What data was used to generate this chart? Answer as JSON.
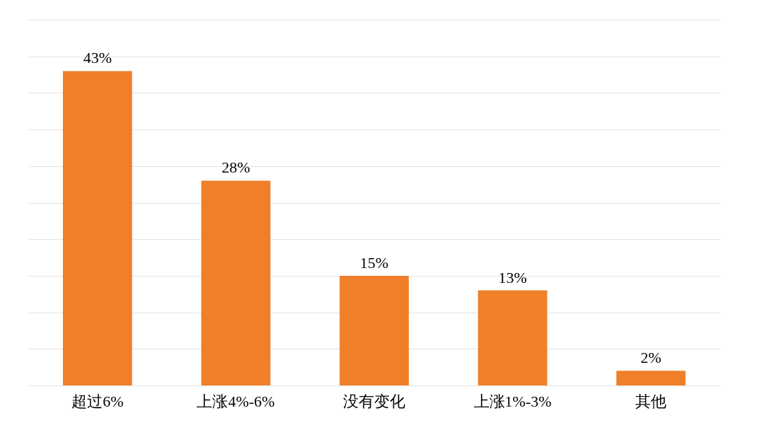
{
  "chart_data": {
    "type": "bar",
    "categories": [
      "超过6%",
      "上涨4%-6%",
      "没有变化",
      "上涨1%-3%",
      "其他"
    ],
    "values": [
      43,
      28,
      15,
      13,
      2
    ],
    "value_labels": [
      "43%",
      "28%",
      "15%",
      "13%",
      "2%"
    ],
    "color": "#f07f2a",
    "ylim": [
      0,
      50
    ],
    "yticks": [
      {
        "value": 0,
        "label": null
      },
      {
        "value": 5,
        "label": null
      },
      {
        "value": 10,
        "label": null
      },
      {
        "value": 15,
        "label": null
      },
      {
        "value": 20,
        "label": null
      },
      {
        "value": 25,
        "label": null
      },
      {
        "value": 30,
        "label": null
      },
      {
        "value": 35,
        "label": null
      },
      {
        "value": 40,
        "label": null
      },
      {
        "value": 45,
        "label": null
      },
      {
        "value": 50,
        "label": null
      }
    ],
    "grid": "y",
    "tick_labels": "x"
  }
}
